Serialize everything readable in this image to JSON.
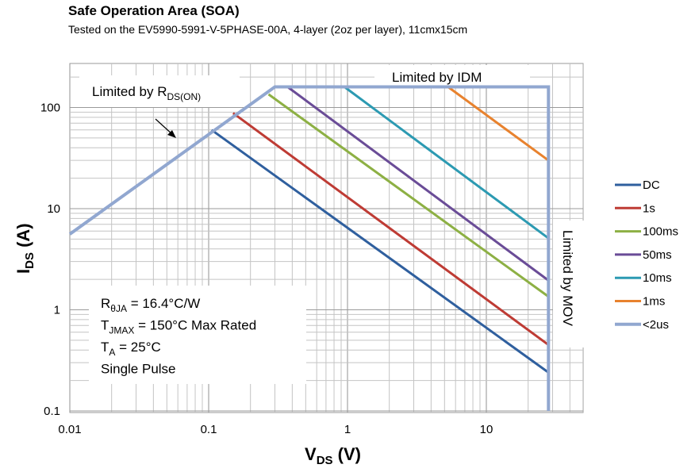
{
  "chart_data": {
    "type": "line",
    "title": "Safe Operation Area (SOA)",
    "subtitle": "Tested on the EV5990-5991-V-5PHASE-00A, 4-layer (2oz per layer), 11cmx15cm",
    "xlabel": {
      "main": "V",
      "sub": "DS",
      "unit": " (V)"
    },
    "ylabel": {
      "main": "I",
      "sub": "DS",
      "unit": " (A)"
    },
    "x_scale": "log",
    "y_scale": "log",
    "xlim": [
      0.01,
      50
    ],
    "ylim": [
      0.1,
      260
    ],
    "x_ticks": [
      {
        "value": 0.01,
        "label": "0.01"
      },
      {
        "value": 0.1,
        "label": "0.1"
      },
      {
        "value": 1,
        "label": "1"
      },
      {
        "value": 10,
        "label": "10"
      }
    ],
    "y_ticks": [
      {
        "value": 0.1,
        "label": "0.1"
      },
      {
        "value": 1,
        "label": "1"
      },
      {
        "value": 10,
        "label": "10"
      },
      {
        "value": 100,
        "label": "100"
      }
    ],
    "grid": true,
    "legend_position": "right",
    "series": [
      {
        "name": "DC",
        "color": "#2f5f9e",
        "points": [
          [
            0.105,
            60
          ],
          [
            28,
            0.24
          ]
        ]
      },
      {
        "name": "1s",
        "color": "#be3b34",
        "points": [
          [
            0.15,
            88
          ],
          [
            28,
            0.45
          ]
        ]
      },
      {
        "name": "100ms",
        "color": "#8db044",
        "points": [
          [
            0.27,
            135
          ],
          [
            28,
            1.35
          ]
        ]
      },
      {
        "name": "50ms",
        "color": "#6a4c97",
        "points": [
          [
            0.37,
            160
          ],
          [
            28,
            1.95
          ]
        ]
      },
      {
        "name": "10ms",
        "color": "#2c9ab2",
        "points": [
          [
            0.95,
            160
          ],
          [
            28,
            5.1
          ]
        ]
      },
      {
        "name": "1ms",
        "color": "#e8822e",
        "points": [
          [
            5.3,
            160
          ],
          [
            28,
            30
          ]
        ]
      },
      {
        "name": "<2us",
        "color": "#91a7d0",
        "points": [
          [
            0.01,
            5.6
          ],
          [
            0.3,
            160
          ],
          [
            28,
            160
          ],
          [
            28,
            0.1
          ]
        ]
      }
    ],
    "annotations": {
      "rdson": {
        "text": "Limited by R",
        "sub": "DS(ON)"
      },
      "idm": "Limited by IDM",
      "mov": "Limited by MOV",
      "conditions": [
        {
          "main": "R",
          "sub": "θJA",
          "rest": " = 16.4°C/W"
        },
        {
          "main": "T",
          "sub": "JMAX",
          "rest": " = 150°C Max Rated"
        },
        {
          "main": "T",
          "sub": "A",
          "rest": " = 25°C"
        },
        {
          "main": "Single Pulse",
          "sub": "",
          "rest": ""
        }
      ]
    }
  }
}
